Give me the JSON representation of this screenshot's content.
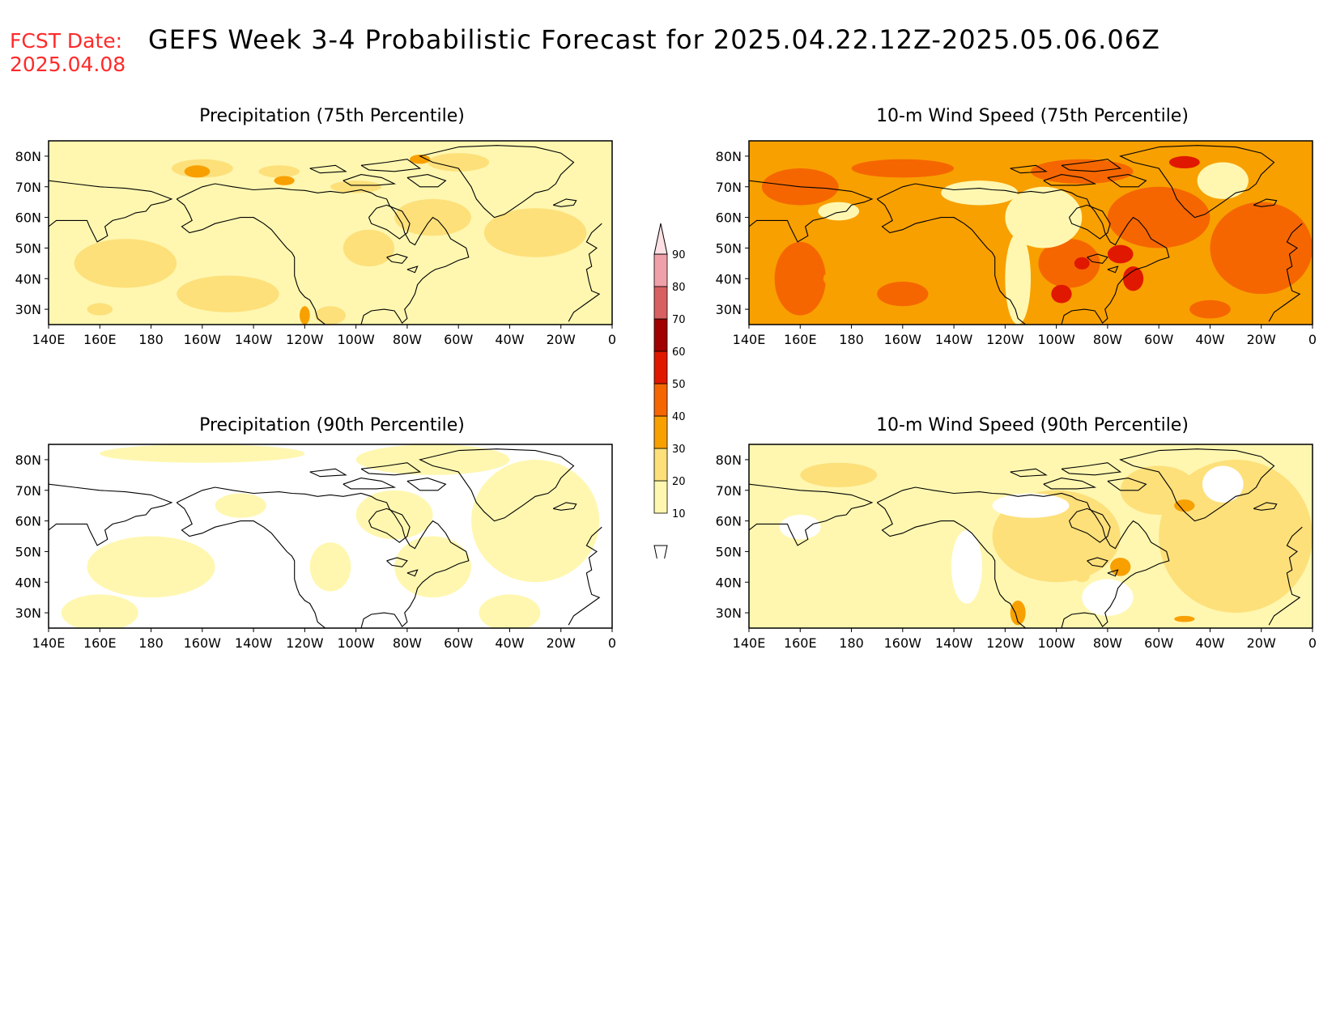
{
  "header": {
    "fcst_label": "FCST Date:",
    "fcst_date": "2025.04.08",
    "title": "GEFS Week 3-4 Probabilistic Forecast for 2025.04.22.12Z-2025.05.06.06Z"
  },
  "axes": {
    "lon_ticks": [
      "140E",
      "160E",
      "180",
      "160W",
      "140W",
      "120W",
      "100W",
      "80W",
      "60W",
      "40W",
      "20W",
      "0"
    ],
    "lat_ticks": [
      "80N",
      "70N",
      "60N",
      "50N",
      "40N",
      "30N"
    ]
  },
  "panels": [
    {
      "title": "Precipitation (75th Percentile)",
      "level": "medium"
    },
    {
      "title": "10-m Wind Speed (75th Percentile)",
      "level": "high"
    },
    {
      "title": "Precipitation (90th Percentile)",
      "level": "low"
    },
    {
      "title": "10-m Wind Speed (90th Percentile)",
      "level": "low-medium"
    }
  ],
  "colorbar": {
    "levels": [
      "10",
      "20",
      "30",
      "40",
      "50",
      "60",
      "70",
      "80",
      "90"
    ],
    "colors": [
      "#fff7b0",
      "#fde07a",
      "#f8a000",
      "#f56600",
      "#e01800",
      "#a00000",
      "#d86060",
      "#f0a0a8",
      "#fde0e4"
    ]
  }
}
